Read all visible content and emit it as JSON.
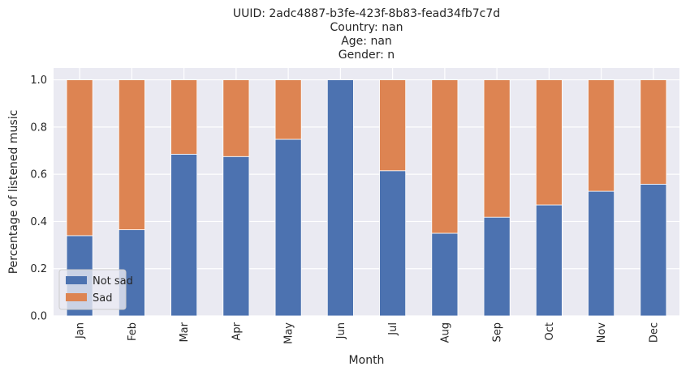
{
  "chart_data": {
    "type": "bar",
    "stacked": true,
    "title_lines": [
      "UUID: 2adc4887-b3fe-423f-8b83-fead34fb7c7d",
      "Country: nan",
      "Age: nan",
      "Gender: n"
    ],
    "xlabel": "Month",
    "ylabel": "Percentage of listened music",
    "categories": [
      "Jan",
      "Feb",
      "Mar",
      "Apr",
      "May",
      "Jun",
      "Jul",
      "Aug",
      "Sep",
      "Oct",
      "Nov",
      "Dec"
    ],
    "series": [
      {
        "name": "Not sad",
        "color": "#4c72b0",
        "values": [
          0.34,
          0.365,
          0.685,
          0.675,
          0.748,
          1.0,
          0.615,
          0.35,
          0.418,
          0.47,
          0.528,
          0.558
        ]
      },
      {
        "name": "Sad",
        "color": "#dd8452",
        "values": [
          0.66,
          0.635,
          0.315,
          0.325,
          0.252,
          0.0,
          0.385,
          0.65,
          0.582,
          0.53,
          0.472,
          0.442
        ]
      }
    ],
    "ylim": [
      0,
      1.05
    ],
    "yticks": [
      "0.0",
      "0.2",
      "0.4",
      "0.6",
      "0.8",
      "1.0"
    ],
    "grid": true,
    "background": "#eaeaf2",
    "legend_position": "lower-left"
  }
}
